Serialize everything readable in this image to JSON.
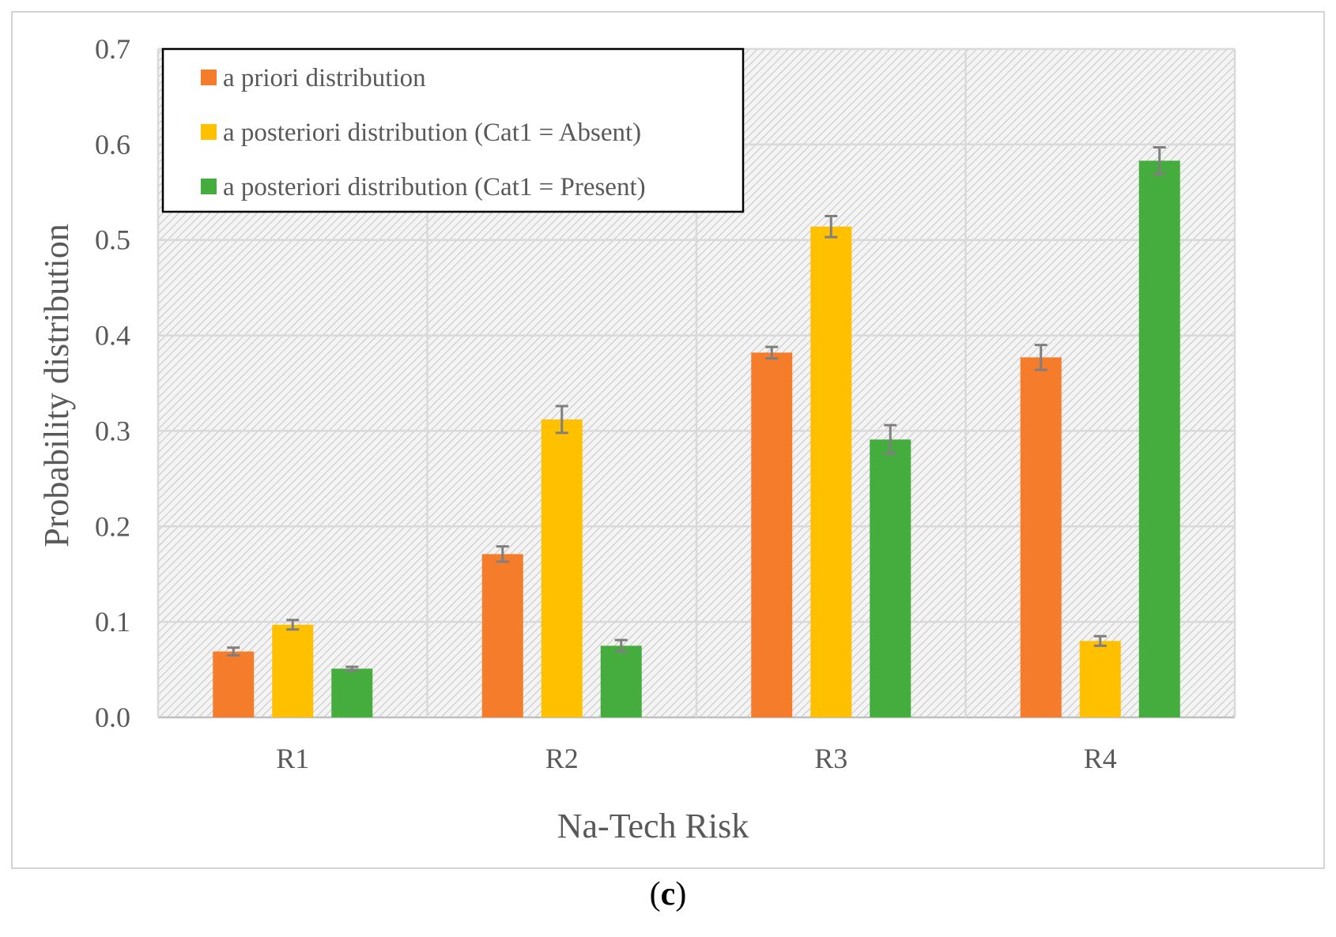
{
  "chart_data": {
    "type": "bar",
    "title": "",
    "xlabel": "Na-Tech Risk",
    "ylabel": "Probability distribution",
    "ylim": [
      0,
      0.7
    ],
    "yticks": [
      "0.0",
      "0.1",
      "0.2",
      "0.3",
      "0.4",
      "0.5",
      "0.6",
      "0.7"
    ],
    "grid": true,
    "legend_position": "top-left",
    "categories": [
      "R1",
      "R2",
      "R3",
      "R4"
    ],
    "series": [
      {
        "name": "a priori distribution",
        "color": "#f47c2a",
        "values": [
          0.069,
          0.171,
          0.382,
          0.377
        ],
        "errors": [
          0.004,
          0.008,
          0.006,
          0.013
        ]
      },
      {
        "name": "a posteriori distribution (Cat1 = Absent)",
        "color": "#ffc000",
        "values": [
          0.097,
          0.312,
          0.514,
          0.08
        ],
        "errors": [
          0.005,
          0.014,
          0.011,
          0.005
        ]
      },
      {
        "name": "a posteriori distribution (Cat1 = Present)",
        "color": "#45ad3e",
        "values": [
          0.051,
          0.075,
          0.291,
          0.583
        ],
        "errors": [
          0.002,
          0.006,
          0.015,
          0.014
        ]
      }
    ]
  },
  "caption": {
    "open": "(",
    "letter": "c",
    "close": ")"
  }
}
